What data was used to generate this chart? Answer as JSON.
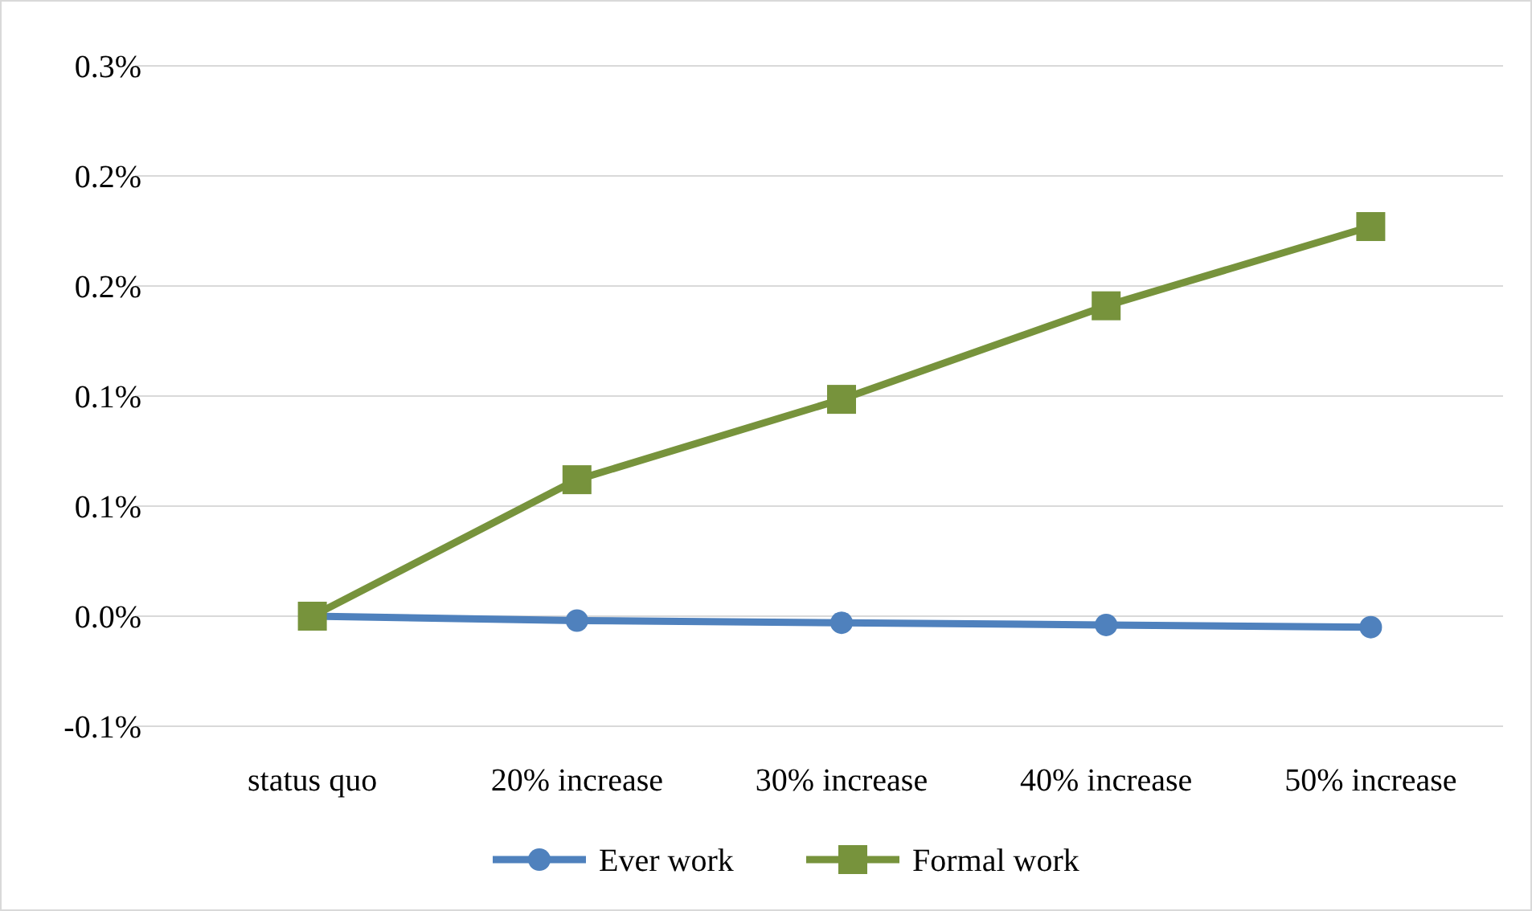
{
  "chart_data": {
    "type": "line",
    "categories": [
      "status quo",
      "20% increase",
      "30% increase",
      "40% increase",
      "50% increase"
    ],
    "series": [
      {
        "name": "Ever work",
        "color": "#4f81bd",
        "marker": "circle",
        "values": [
          0,
          -0.002,
          -0.003,
          -0.004,
          -0.005
        ]
      },
      {
        "name": "Formal work",
        "color": "#77933c",
        "marker": "square",
        "values": [
          0,
          0.062,
          0.0985,
          0.141,
          0.177
        ]
      }
    ],
    "ylim": [
      -0.05,
      0.25
    ],
    "yticks": [
      {
        "value": -0.05,
        "label": "-0.1%"
      },
      {
        "value": 0,
        "label": "0.0%"
      },
      {
        "value": 0.05,
        "label": "0.1%"
      },
      {
        "value": 0.1,
        "label": "0.1%"
      },
      {
        "value": 0.15,
        "label": "0.2%"
      },
      {
        "value": 0.2,
        "label": "0.2%"
      },
      {
        "value": 0.25,
        "label": "0.3%"
      }
    ],
    "grid": "y",
    "legend": "bottom",
    "line_style": "solid"
  }
}
